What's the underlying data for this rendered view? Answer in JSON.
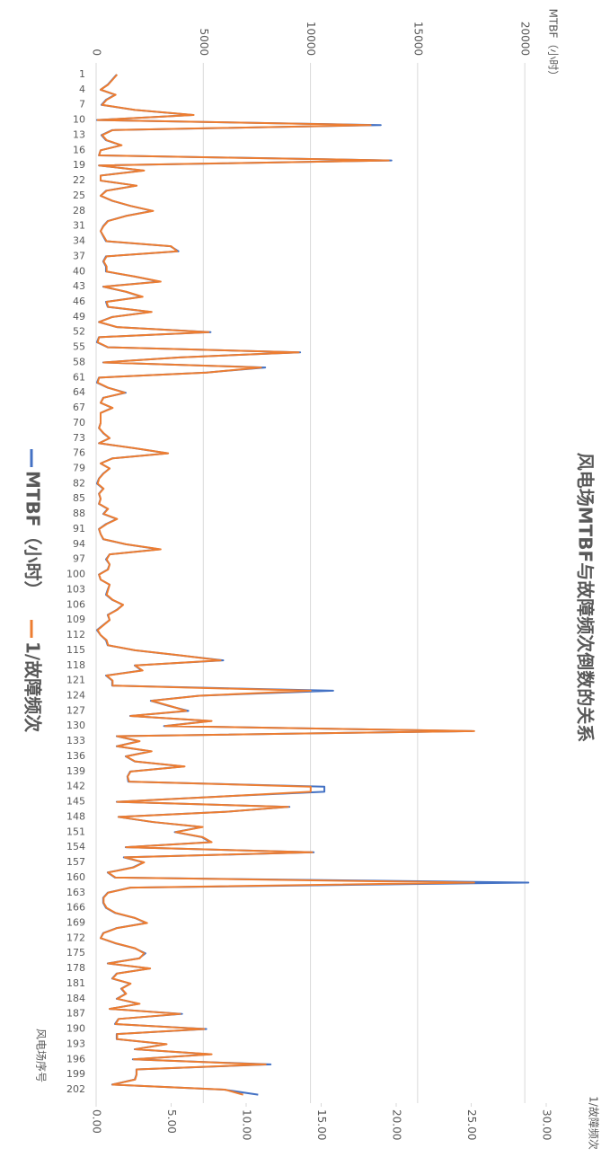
{
  "chart_data": {
    "type": "line",
    "title": "风电场MTBF与故障频次倒数的关系",
    "x_label": "风电场序号",
    "y_label": "MTBF（小时）",
    "y2_label": "1/故障频次",
    "categories": [
      1,
      null,
      null,
      4,
      null,
      null,
      7,
      null,
      null,
      10,
      null,
      null,
      13,
      null,
      null,
      16,
      null,
      null,
      19,
      null,
      null,
      22,
      null,
      null,
      25,
      null,
      null,
      28,
      null,
      null,
      31,
      null,
      null,
      34,
      null,
      null,
      37,
      null,
      null,
      40,
      null,
      null,
      43,
      null,
      null,
      46,
      null,
      null,
      49,
      null,
      null,
      52,
      null,
      null,
      55,
      null,
      null,
      58,
      null,
      null,
      61,
      null,
      null,
      64,
      null,
      null,
      67,
      null,
      null,
      70,
      null,
      null,
      73,
      null,
      null,
      76,
      null,
      null,
      79,
      null,
      null,
      82,
      null,
      null,
      85,
      null,
      null,
      88,
      null,
      null,
      91,
      null,
      null,
      94,
      null,
      null,
      97,
      null,
      null,
      100,
      null,
      null,
      103,
      null,
      null,
      106,
      null,
      null,
      109,
      null,
      null,
      112,
      null,
      null,
      115,
      null,
      null,
      118,
      null,
      null,
      121,
      null,
      null,
      124,
      null,
      null,
      127,
      null,
      null,
      130,
      null,
      null,
      133,
      null,
      null,
      136,
      null,
      null,
      139,
      null,
      null,
      142,
      null,
      null,
      145,
      null,
      null,
      148,
      null,
      null,
      151,
      null,
      null,
      154,
      null,
      null,
      157,
      null,
      null,
      160,
      null,
      null,
      163,
      null,
      null,
      166,
      null,
      null,
      169,
      null,
      null,
      172,
      null,
      null,
      175,
      null,
      null,
      178,
      null,
      null,
      181,
      null,
      null,
      184,
      null,
      null,
      187,
      null,
      null,
      190,
      null,
      null,
      193,
      null,
      null,
      196,
      null,
      null,
      199,
      null,
      null,
      202,
      null
    ],
    "series": [
      {
        "name": "MTBF（小时）",
        "color": "#4472c4",
        "axis": "y",
        "values": [
          960,
          750,
          540,
          210,
          880,
          460,
          250,
          1800,
          4510,
          40,
          13280,
          750,
          250,
          460,
          1170,
          210,
          130,
          13780,
          130,
          2210,
          210,
          210,
          1880,
          460,
          210,
          750,
          1590,
          2630,
          1380,
          540,
          330,
          210,
          330,
          460,
          3470,
          3840,
          460,
          330,
          460,
          460,
          1800,
          2960,
          330,
          1380,
          2130,
          460,
          540,
          2550,
          750,
          130,
          960,
          5340,
          130,
          40,
          540,
          9520,
          3880,
          330,
          7890,
          5140,
          130,
          40,
          540,
          1380,
          330,
          210,
          750,
          210,
          210,
          210,
          130,
          330,
          630,
          130,
          1800,
          3340,
          750,
          210,
          630,
          330,
          130,
          40,
          330,
          130,
          210,
          130,
          540,
          330,
          960,
          460,
          130,
          210,
          330,
          1380,
          2960,
          630,
          460,
          630,
          540,
          130,
          210,
          630,
          540,
          460,
          750,
          1250,
          960,
          540,
          630,
          330,
          40,
          210,
          460,
          540,
          1800,
          3880,
          5930,
          1800,
          2130,
          460,
          750,
          750,
          11060,
          4800,
          2550,
          3380,
          4300,
          1590,
          5340,
          3170,
          17540,
          960,
          2000,
          960,
          2550,
          1380,
          1800,
          4090,
          1590,
          1460,
          1500,
          10650,
          10650,
          5550,
          960,
          9020,
          5970,
          1040,
          2630,
          4930,
          3670,
          4930,
          5340,
          1380,
          10150,
          1290,
          2210,
          1710,
          540,
          880,
          20170,
          1590,
          540,
          330,
          330,
          460,
          880,
          1800,
          2340,
          960,
          330,
          210,
          880,
          1800,
          2300,
          2000,
          540,
          2510,
          960,
          750,
          1590,
          1170,
          1380,
          960,
          2000,
          630,
          4010,
          1040,
          880,
          5140,
          960,
          960,
          3260,
          1800,
          5340,
          1710,
          8140,
          1880,
          1880,
          1800,
          750,
          5970,
          7560
        ]
      },
      {
        "name": "1/故障频次",
        "color": "#ed7d31",
        "axis": "y2",
        "values": [
          1.4,
          1.1,
          0.8,
          0.3,
          1.3,
          0.7,
          0.4,
          2.6,
          6.5,
          0.1,
          18.3,
          1.1,
          0.4,
          0.7,
          1.7,
          0.3,
          0.2,
          19.5,
          0.2,
          3.2,
          0.3,
          0.3,
          2.7,
          0.7,
          0.3,
          1.1,
          2.3,
          3.8,
          2.0,
          0.8,
          0.5,
          0.3,
          0.5,
          0.7,
          5.0,
          5.4,
          0.7,
          0.5,
          0.7,
          0.7,
          2.6,
          4.3,
          0.5,
          2.0,
          3.1,
          0.7,
          0.8,
          3.7,
          1.1,
          0.2,
          1.4,
          7.5,
          0.2,
          0.1,
          0.8,
          13.5,
          5.6,
          0.5,
          11.0,
          7.4,
          0.2,
          0.1,
          0.8,
          1.9,
          0.5,
          0.3,
          1.1,
          0.3,
          0.3,
          0.3,
          0.2,
          0.5,
          0.9,
          0.2,
          2.6,
          4.8,
          1.1,
          0.3,
          0.9,
          0.5,
          0.2,
          0.1,
          0.5,
          0.2,
          0.3,
          0.2,
          0.8,
          0.5,
          1.4,
          0.7,
          0.2,
          0.3,
          0.5,
          2.0,
          4.3,
          0.9,
          0.7,
          0.9,
          0.8,
          0.2,
          0.3,
          0.9,
          0.8,
          0.7,
          1.1,
          1.8,
          1.4,
          0.8,
          0.9,
          0.5,
          0.1,
          0.3,
          0.7,
          0.8,
          2.6,
          5.6,
          8.3,
          2.6,
          3.1,
          0.7,
          1.1,
          1.1,
          14.3,
          6.9,
          3.7,
          4.9,
          6.0,
          2.3,
          7.7,
          4.6,
          25.2,
          1.4,
          2.9,
          1.4,
          3.7,
          2.0,
          2.6,
          5.9,
          2.3,
          2.1,
          2.2,
          14.3,
          14.3,
          8.0,
          1.4,
          12.8,
          8.6,
          1.5,
          3.8,
          7.1,
          5.3,
          7.1,
          7.7,
          2.0,
          14.4,
          1.9,
          3.2,
          2.5,
          0.8,
          1.3,
          25.2,
          2.3,
          0.8,
          0.5,
          0.5,
          0.7,
          1.3,
          2.6,
          3.4,
          1.4,
          0.5,
          0.3,
          1.3,
          2.6,
          3.2,
          2.9,
          0.8,
          3.6,
          1.4,
          1.1,
          2.3,
          1.7,
          2.0,
          1.4,
          2.9,
          0.9,
          5.6,
          1.5,
          1.3,
          7.2,
          1.4,
          1.4,
          4.7,
          2.6,
          7.7,
          2.5,
          11.3,
          2.7,
          2.7,
          2.6,
          1.1,
          8.6,
          9.8
        ]
      }
    ],
    "ylim": [
      0,
      21000
    ],
    "yticks": [
      0,
      5000,
      10000,
      15000,
      20000
    ],
    "y2lim": [
      0,
      30
    ],
    "y2ticks": [
      {
        "value": 0,
        "label": "0.00"
      },
      {
        "value": 5,
        "label": "5.00"
      },
      {
        "value": 10,
        "label": "10.00"
      },
      {
        "value": 15,
        "label": "15.00"
      },
      {
        "value": 20,
        "label": "20.00"
      },
      {
        "value": 25,
        "label": "25.00"
      },
      {
        "value": 30,
        "label": "30.00"
      }
    ],
    "grid": true,
    "legend": "bottom"
  }
}
